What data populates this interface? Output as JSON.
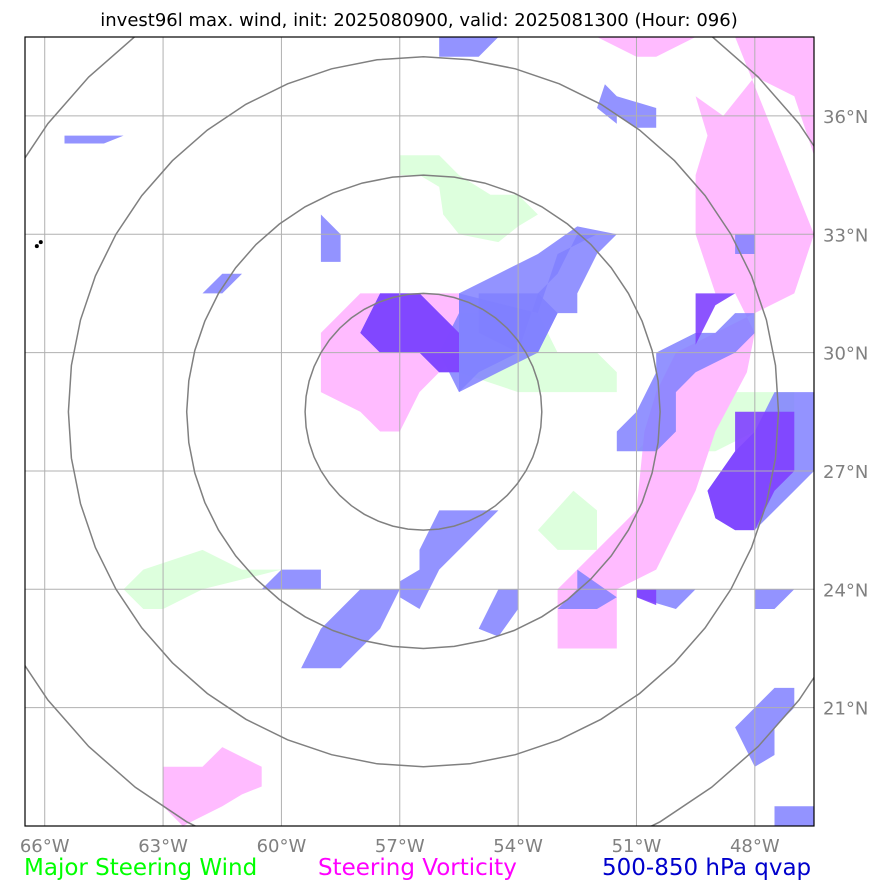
{
  "title": "invest96l max. wind, init: 2025080900, valid: 2025081300 (Hour: 096)",
  "colors": {
    "major_steering_wind": "#00ff00",
    "steering_vorticity": "#ff00ff",
    "qvap": "#0000cc",
    "wind_fill": "#ddffdd",
    "vorticity_fill": "#ffbbff",
    "qvap_fill": "#8080ff",
    "overlap_fill": "#8040ff",
    "grid": "#b0b0b0",
    "range_ring": "#808080"
  },
  "map": {
    "lon_range": [
      -66.5,
      -46.5
    ],
    "lat_range": [
      18.0,
      38.0
    ],
    "lon_ticks": [
      {
        "value": -66,
        "label": "66°W"
      },
      {
        "value": -63,
        "label": "63°W"
      },
      {
        "value": -60,
        "label": "60°W"
      },
      {
        "value": -57,
        "label": "57°W"
      },
      {
        "value": -54,
        "label": "54°W"
      },
      {
        "value": -51,
        "label": "51°W"
      },
      {
        "value": -48,
        "label": "48°W"
      }
    ],
    "lat_ticks": [
      {
        "value": 36,
        "label": "36°N"
      },
      {
        "value": 33,
        "label": "33°N"
      },
      {
        "value": 30,
        "label": "30°N"
      },
      {
        "value": 27,
        "label": "27°N"
      },
      {
        "value": 24,
        "label": "24°N"
      },
      {
        "value": 21,
        "label": "21°N"
      }
    ],
    "storm_center": {
      "lon": -56.4,
      "lat": 28.5
    },
    "range_rings_deg": [
      3.0,
      6.0,
      9.0,
      12.0
    ],
    "wind_regions": [
      [
        [
          -57.0,
          35.0
        ],
        [
          -56.0,
          35.0
        ],
        [
          -55.5,
          34.5
        ],
        [
          -54.7,
          34.0
        ],
        [
          -54.0,
          34.0
        ],
        [
          -53.5,
          33.5
        ],
        [
          -54.0,
          33.2
        ],
        [
          -54.5,
          32.8
        ],
        [
          -55.5,
          33.0
        ],
        [
          -55.9,
          33.5
        ],
        [
          -56.0,
          34.2
        ],
        [
          -56.5,
          34.5
        ],
        [
          -57.0,
          34.5
        ]
      ],
      [
        [
          -55.5,
          31.0
        ],
        [
          -53.5,
          31.0
        ],
        [
          -53.0,
          30.0
        ],
        [
          -52.0,
          30.0
        ],
        [
          -51.5,
          29.5
        ],
        [
          -51.5,
          29.0
        ],
        [
          -54.0,
          29.0
        ],
        [
          -55.5,
          29.5
        ]
      ],
      [
        [
          -62.0,
          25.0
        ],
        [
          -61.0,
          24.5
        ],
        [
          -60.0,
          24.5
        ],
        [
          -62.0,
          24.0
        ],
        [
          -63.0,
          23.5
        ],
        [
          -63.5,
          23.5
        ],
        [
          -64.0,
          24.0
        ],
        [
          -63.5,
          24.5
        ]
      ],
      [
        [
          -52.6,
          26.5
        ],
        [
          -52.0,
          26.0
        ],
        [
          -52.0,
          25.0
        ],
        [
          -53.0,
          25.0
        ],
        [
          -53.5,
          25.5
        ]
      ],
      [
        [
          -51.0,
          27.5
        ],
        [
          -49.0,
          27.5
        ],
        [
          -47.0,
          28.5
        ],
        [
          -47.0,
          29.0
        ],
        [
          -49.0,
          29.0
        ],
        [
          -50.0,
          28.5
        ]
      ]
    ],
    "vorticity_regions": [
      [
        [
          -48.5,
          38.0
        ],
        [
          -46.5,
          38.0
        ],
        [
          -46.5,
          35.0
        ],
        [
          -47.0,
          36.5
        ],
        [
          -48.0,
          37.0
        ],
        [
          -48.8,
          36.0
        ],
        [
          -49.5,
          36.5
        ],
        [
          -49.2,
          35.5
        ],
        [
          -49.5,
          34.5
        ],
        [
          -49.5,
          33.0
        ],
        [
          -49.0,
          31.5
        ],
        [
          -48.5,
          31.5
        ],
        [
          -48.0,
          30.5
        ],
        [
          -48.2,
          29.5
        ],
        [
          -49.0,
          28.0
        ],
        [
          -49.5,
          26.5
        ],
        [
          -50.5,
          24.5
        ],
        [
          -51.5,
          24.0
        ],
        [
          -51.5,
          22.5
        ],
        [
          -53.0,
          22.5
        ],
        [
          -53.0,
          24.0
        ],
        [
          -51.5,
          25.5
        ],
        [
          -51.0,
          26.0
        ],
        [
          -50.8,
          28.0
        ],
        [
          -50.5,
          29.0
        ],
        [
          -50.0,
          30.0
        ],
        [
          -47.0,
          31.5
        ],
        [
          -46.5,
          33.0
        ]
      ],
      [
        [
          -52.0,
          38.0
        ],
        [
          -51.0,
          37.5
        ],
        [
          -50.5,
          37.5
        ],
        [
          -49.5,
          38.0
        ]
      ],
      [
        [
          -58.0,
          31.5
        ],
        [
          -55.5,
          31.5
        ],
        [
          -55.5,
          30.0
        ],
        [
          -56.0,
          29.5
        ],
        [
          -56.5,
          29.0
        ],
        [
          -57.0,
          28.0
        ],
        [
          -57.5,
          28.0
        ],
        [
          -58.0,
          28.5
        ],
        [
          -59.0,
          29.0
        ],
        [
          -59.0,
          30.5
        ]
      ],
      [
        [
          -61.5,
          20.0
        ],
        [
          -60.5,
          19.5
        ],
        [
          -60.5,
          19.0
        ],
        [
          -61.0,
          18.8
        ],
        [
          -61.5,
          18.5
        ],
        [
          -62.5,
          18.0
        ],
        [
          -63.0,
          18.5
        ],
        [
          -63.0,
          19.5
        ],
        [
          -62.0,
          19.5
        ]
      ]
    ],
    "qvap_regions": [
      [
        [
          -57.5,
          31.5
        ],
        [
          -56.5,
          31.5
        ],
        [
          -56.0,
          31.0
        ],
        [
          -55.5,
          30.5
        ],
        [
          -55.5,
          29.5
        ],
        [
          -56.0,
          29.5
        ],
        [
          -56.5,
          30.0
        ],
        [
          -57.5,
          30.0
        ],
        [
          -58.0,
          30.5
        ]
      ],
      [
        [
          -55.5,
          31.5
        ],
        [
          -53.5,
          31.0
        ],
        [
          -53.0,
          32.5
        ],
        [
          -52.0,
          33.0
        ],
        [
          -52.5,
          33.0
        ],
        [
          -53.0,
          32.0
        ],
        [
          -53.5,
          31.5
        ],
        [
          -54.0,
          30.0
        ],
        [
          -55.0,
          29.5
        ],
        [
          -55.5,
          29.0
        ],
        [
          -55.5,
          30.0
        ]
      ],
      [
        [
          -55.0,
          30.5
        ],
        [
          -54.0,
          30.0
        ],
        [
          -53.5,
          30.0
        ],
        [
          -53.0,
          31.0
        ],
        [
          -53.5,
          31.5
        ],
        [
          -55.0,
          31.5
        ]
      ],
      [
        [
          -54.5,
          32.0
        ],
        [
          -53.5,
          32.5
        ],
        [
          -52.5,
          33.2
        ],
        [
          -51.5,
          33.0
        ],
        [
          -52.0,
          32.5
        ],
        [
          -52.5,
          31.5
        ],
        [
          -52.5,
          31.0
        ],
        [
          -53.0,
          31.0
        ],
        [
          -53.5,
          30.0
        ],
        [
          -54.5,
          29.5
        ],
        [
          -55.5,
          29.0
        ],
        [
          -56.0,
          30.0
        ],
        [
          -55.5,
          31.0
        ],
        [
          -55.5,
          31.5
        ]
      ],
      [
        [
          -49.0,
          30.5
        ],
        [
          -48.5,
          31.0
        ],
        [
          -48.0,
          31.0
        ],
        [
          -48.0,
          30.5
        ],
        [
          -48.5,
          30.0
        ],
        [
          -49.5,
          29.5
        ],
        [
          -50.0,
          29.0
        ],
        [
          -50.0,
          28.0
        ],
        [
          -50.5,
          27.5
        ],
        [
          -51.5,
          27.5
        ],
        [
          -51.5,
          28.0
        ],
        [
          -51.0,
          28.5
        ],
        [
          -50.5,
          29.5
        ],
        [
          -50.5,
          30.0
        ],
        [
          -49.5,
          30.5
        ]
      ],
      [
        [
          -47.5,
          29.0
        ],
        [
          -46.5,
          29.0
        ],
        [
          -46.5,
          27.0
        ],
        [
          -47.0,
          26.5
        ],
        [
          -48.0,
          25.5
        ],
        [
          -48.5,
          25.5
        ],
        [
          -49.0,
          25.8
        ],
        [
          -49.2,
          26.5
        ],
        [
          -48.5,
          27.5
        ],
        [
          -48.0,
          28.0
        ]
      ],
      [
        [
          -56.0,
          26.0
        ],
        [
          -54.5,
          26.0
        ],
        [
          -55.5,
          25.0
        ],
        [
          -56.0,
          24.5
        ],
        [
          -56.5,
          23.5
        ],
        [
          -57.0,
          23.8
        ],
        [
          -57.0,
          24.2
        ],
        [
          -56.5,
          24.5
        ],
        [
          -56.5,
          25.0
        ]
      ],
      [
        [
          -60.0,
          24.5
        ],
        [
          -59.0,
          24.5
        ],
        [
          -59.0,
          24.0
        ],
        [
          -60.5,
          24.0
        ],
        [
          -61.0,
          23.8
        ],
        [
          -60.5,
          24.0
        ]
      ],
      [
        [
          -58.0,
          24.0
        ],
        [
          -57.0,
          24.0
        ],
        [
          -57.5,
          23.0
        ],
        [
          -58.0,
          22.5
        ],
        [
          -58.5,
          22.0
        ],
        [
          -59.5,
          22.0
        ],
        [
          -59.0,
          23.0
        ]
      ],
      [
        [
          -54.5,
          24.0
        ],
        [
          -54.0,
          24.0
        ],
        [
          -54.0,
          23.5
        ],
        [
          -54.5,
          22.8
        ],
        [
          -55.0,
          23.0
        ]
      ],
      [
        [
          -52.5,
          24.5
        ],
        [
          -51.5,
          23.8
        ],
        [
          -52.0,
          23.5
        ],
        [
          -52.5,
          23.5
        ],
        [
          -53.0,
          23.5
        ],
        [
          -52.5,
          24.0
        ]
      ],
      [
        [
          -51.0,
          24.0
        ],
        [
          -49.5,
          24.0
        ],
        [
          -50.0,
          23.5
        ],
        [
          -51.0,
          23.8
        ]
      ],
      [
        [
          -48.0,
          24.0
        ],
        [
          -47.0,
          24.0
        ],
        [
          -47.5,
          23.5
        ],
        [
          -48.0,
          23.5
        ]
      ],
      [
        [
          -47.5,
          21.5
        ],
        [
          -47.0,
          21.5
        ],
        [
          -47.0,
          21.0
        ],
        [
          -47.5,
          20.5
        ],
        [
          -47.5,
          19.8
        ],
        [
          -48.0,
          19.5
        ],
        [
          -48.5,
          20.5
        ],
        [
          -48.0,
          21.0
        ]
      ],
      [
        [
          -47.5,
          18.5
        ],
        [
          -46.5,
          18.5
        ],
        [
          -46.5,
          18.0
        ],
        [
          -47.5,
          18.0
        ]
      ],
      [
        [
          -51.5,
          36.5
        ],
        [
          -50.5,
          36.2
        ],
        [
          -50.5,
          35.7
        ],
        [
          -51.0,
          35.7
        ],
        [
          -51.5,
          36.0
        ],
        [
          -51.5,
          35.8
        ],
        [
          -52.0,
          36.2
        ],
        [
          -51.8,
          36.8
        ]
      ],
      [
        [
          -56.0,
          38.0
        ],
        [
          -54.5,
          38.0
        ],
        [
          -55.0,
          37.5
        ],
        [
          -56.0,
          37.5
        ]
      ],
      [
        [
          -65.5,
          35.5
        ],
        [
          -64.0,
          35.5
        ],
        [
          -64.5,
          35.3
        ],
        [
          -65.5,
          35.3
        ]
      ],
      [
        [
          -61.5,
          32.0
        ],
        [
          -61.0,
          32.0
        ],
        [
          -61.5,
          31.5
        ],
        [
          -62.0,
          31.5
        ]
      ],
      [
        [
          -59.0,
          33.5
        ],
        [
          -58.5,
          33.0
        ],
        [
          -58.5,
          32.3
        ],
        [
          -59.0,
          32.3
        ],
        [
          -59.0,
          33.0
        ]
      ],
      [
        [
          -48.5,
          33.0
        ],
        [
          -48.0,
          33.0
        ],
        [
          -48.0,
          32.5
        ],
        [
          -48.5,
          32.5
        ]
      ]
    ],
    "overlap_regions": [
      [
        [
          -57.5,
          31.5
        ],
        [
          -56.5,
          31.5
        ],
        [
          -56.0,
          31.0
        ],
        [
          -55.5,
          30.5
        ],
        [
          -55.5,
          29.5
        ],
        [
          -56.0,
          29.5
        ],
        [
          -56.5,
          30.0
        ],
        [
          -57.5,
          30.0
        ],
        [
          -58.0,
          30.5
        ]
      ],
      [
        [
          -48.5,
          28.5
        ],
        [
          -47.0,
          28.5
        ],
        [
          -47.0,
          27.0
        ],
        [
          -47.5,
          26.5
        ],
        [
          -48.0,
          25.5
        ],
        [
          -48.5,
          25.5
        ],
        [
          -49.0,
          25.8
        ],
        [
          -49.2,
          26.5
        ],
        [
          -48.5,
          27.5
        ]
      ],
      [
        [
          -49.5,
          31.5
        ],
        [
          -48.5,
          31.5
        ],
        [
          -49.0,
          31.2
        ],
        [
          -49.5,
          30.2
        ]
      ],
      [
        [
          -51.0,
          24.0
        ],
        [
          -50.5,
          24.0
        ],
        [
          -50.5,
          23.6
        ],
        [
          -51.0,
          23.8
        ]
      ]
    ],
    "coast_marks": [
      {
        "lon": -66.2,
        "lat": 32.7
      },
      {
        "lon": -66.1,
        "lat": 32.8
      }
    ]
  },
  "legend": [
    {
      "label": "Major Steering Wind",
      "color": "#00ff00"
    },
    {
      "label": "Steering Vorticity",
      "color": "#ff00ff"
    },
    {
      "label": "500-850 hPa qvap",
      "color": "#0000cc"
    }
  ]
}
